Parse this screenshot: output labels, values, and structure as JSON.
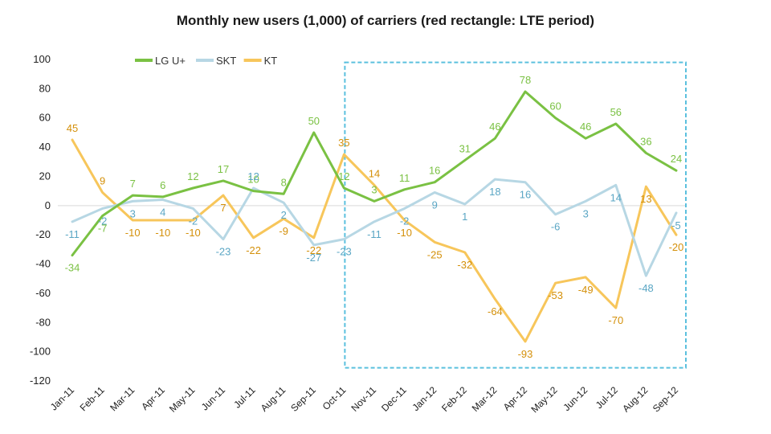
{
  "chart_data": {
    "type": "line",
    "title": "Monthly new users (1,000) of carriers (red rectangle: LTE period)",
    "xlabel": "",
    "ylabel": "",
    "ylim": [
      -120,
      100
    ],
    "yticks": [
      100,
      80,
      60,
      40,
      20,
      0,
      -20,
      -40,
      -60,
      -80,
      -100,
      -120
    ],
    "grid": false,
    "legend_position": "top-left",
    "categories": [
      "Jan-11",
      "Feb-11",
      "Mar-11",
      "Apr-11",
      "May-11",
      "Jun-11",
      "Jul-11",
      "Aug-11",
      "Sep-11",
      "Oct-11",
      "Nov-11",
      "Dec-11",
      "Jan-12",
      "Feb-12",
      "Mar-12",
      "Apr-12",
      "May-12",
      "Jun-12",
      "Jul-12",
      "Aug-12",
      "Sep-12"
    ],
    "series": [
      {
        "name": "LG U+",
        "color": "#7ac143",
        "label_color": "#7ac143",
        "values": [
          -34,
          -7,
          7,
          6,
          12,
          17,
          10,
          8,
          50,
          12,
          3,
          11,
          16,
          31,
          46,
          78,
          60,
          46,
          56,
          36,
          24
        ]
      },
      {
        "name": "SKT",
        "color": "#b7d7e4",
        "label_color": "#5aa6c4",
        "values": [
          -11,
          -2,
          3,
          4,
          -2,
          -23,
          12,
          2,
          -27,
          -23,
          -11,
          -2,
          9,
          1,
          18,
          16,
          -6,
          3,
          14,
          -48,
          -5
        ]
      },
      {
        "name": "KT",
        "color": "#f7c65b",
        "label_color": "#d4900a",
        "values": [
          45,
          9,
          -10,
          -10,
          -10,
          7,
          -22,
          -9,
          -22,
          35,
          14,
          -10,
          -25,
          -32,
          -64,
          -93,
          -53,
          -49,
          -70,
          13,
          -20
        ]
      }
    ],
    "highlight_box": {
      "from_category": "Oct-11",
      "to_category": "Sep-12",
      "y_top": 98,
      "y_bottom": -111,
      "color": "#5bc0de",
      "style": "dashed"
    }
  }
}
